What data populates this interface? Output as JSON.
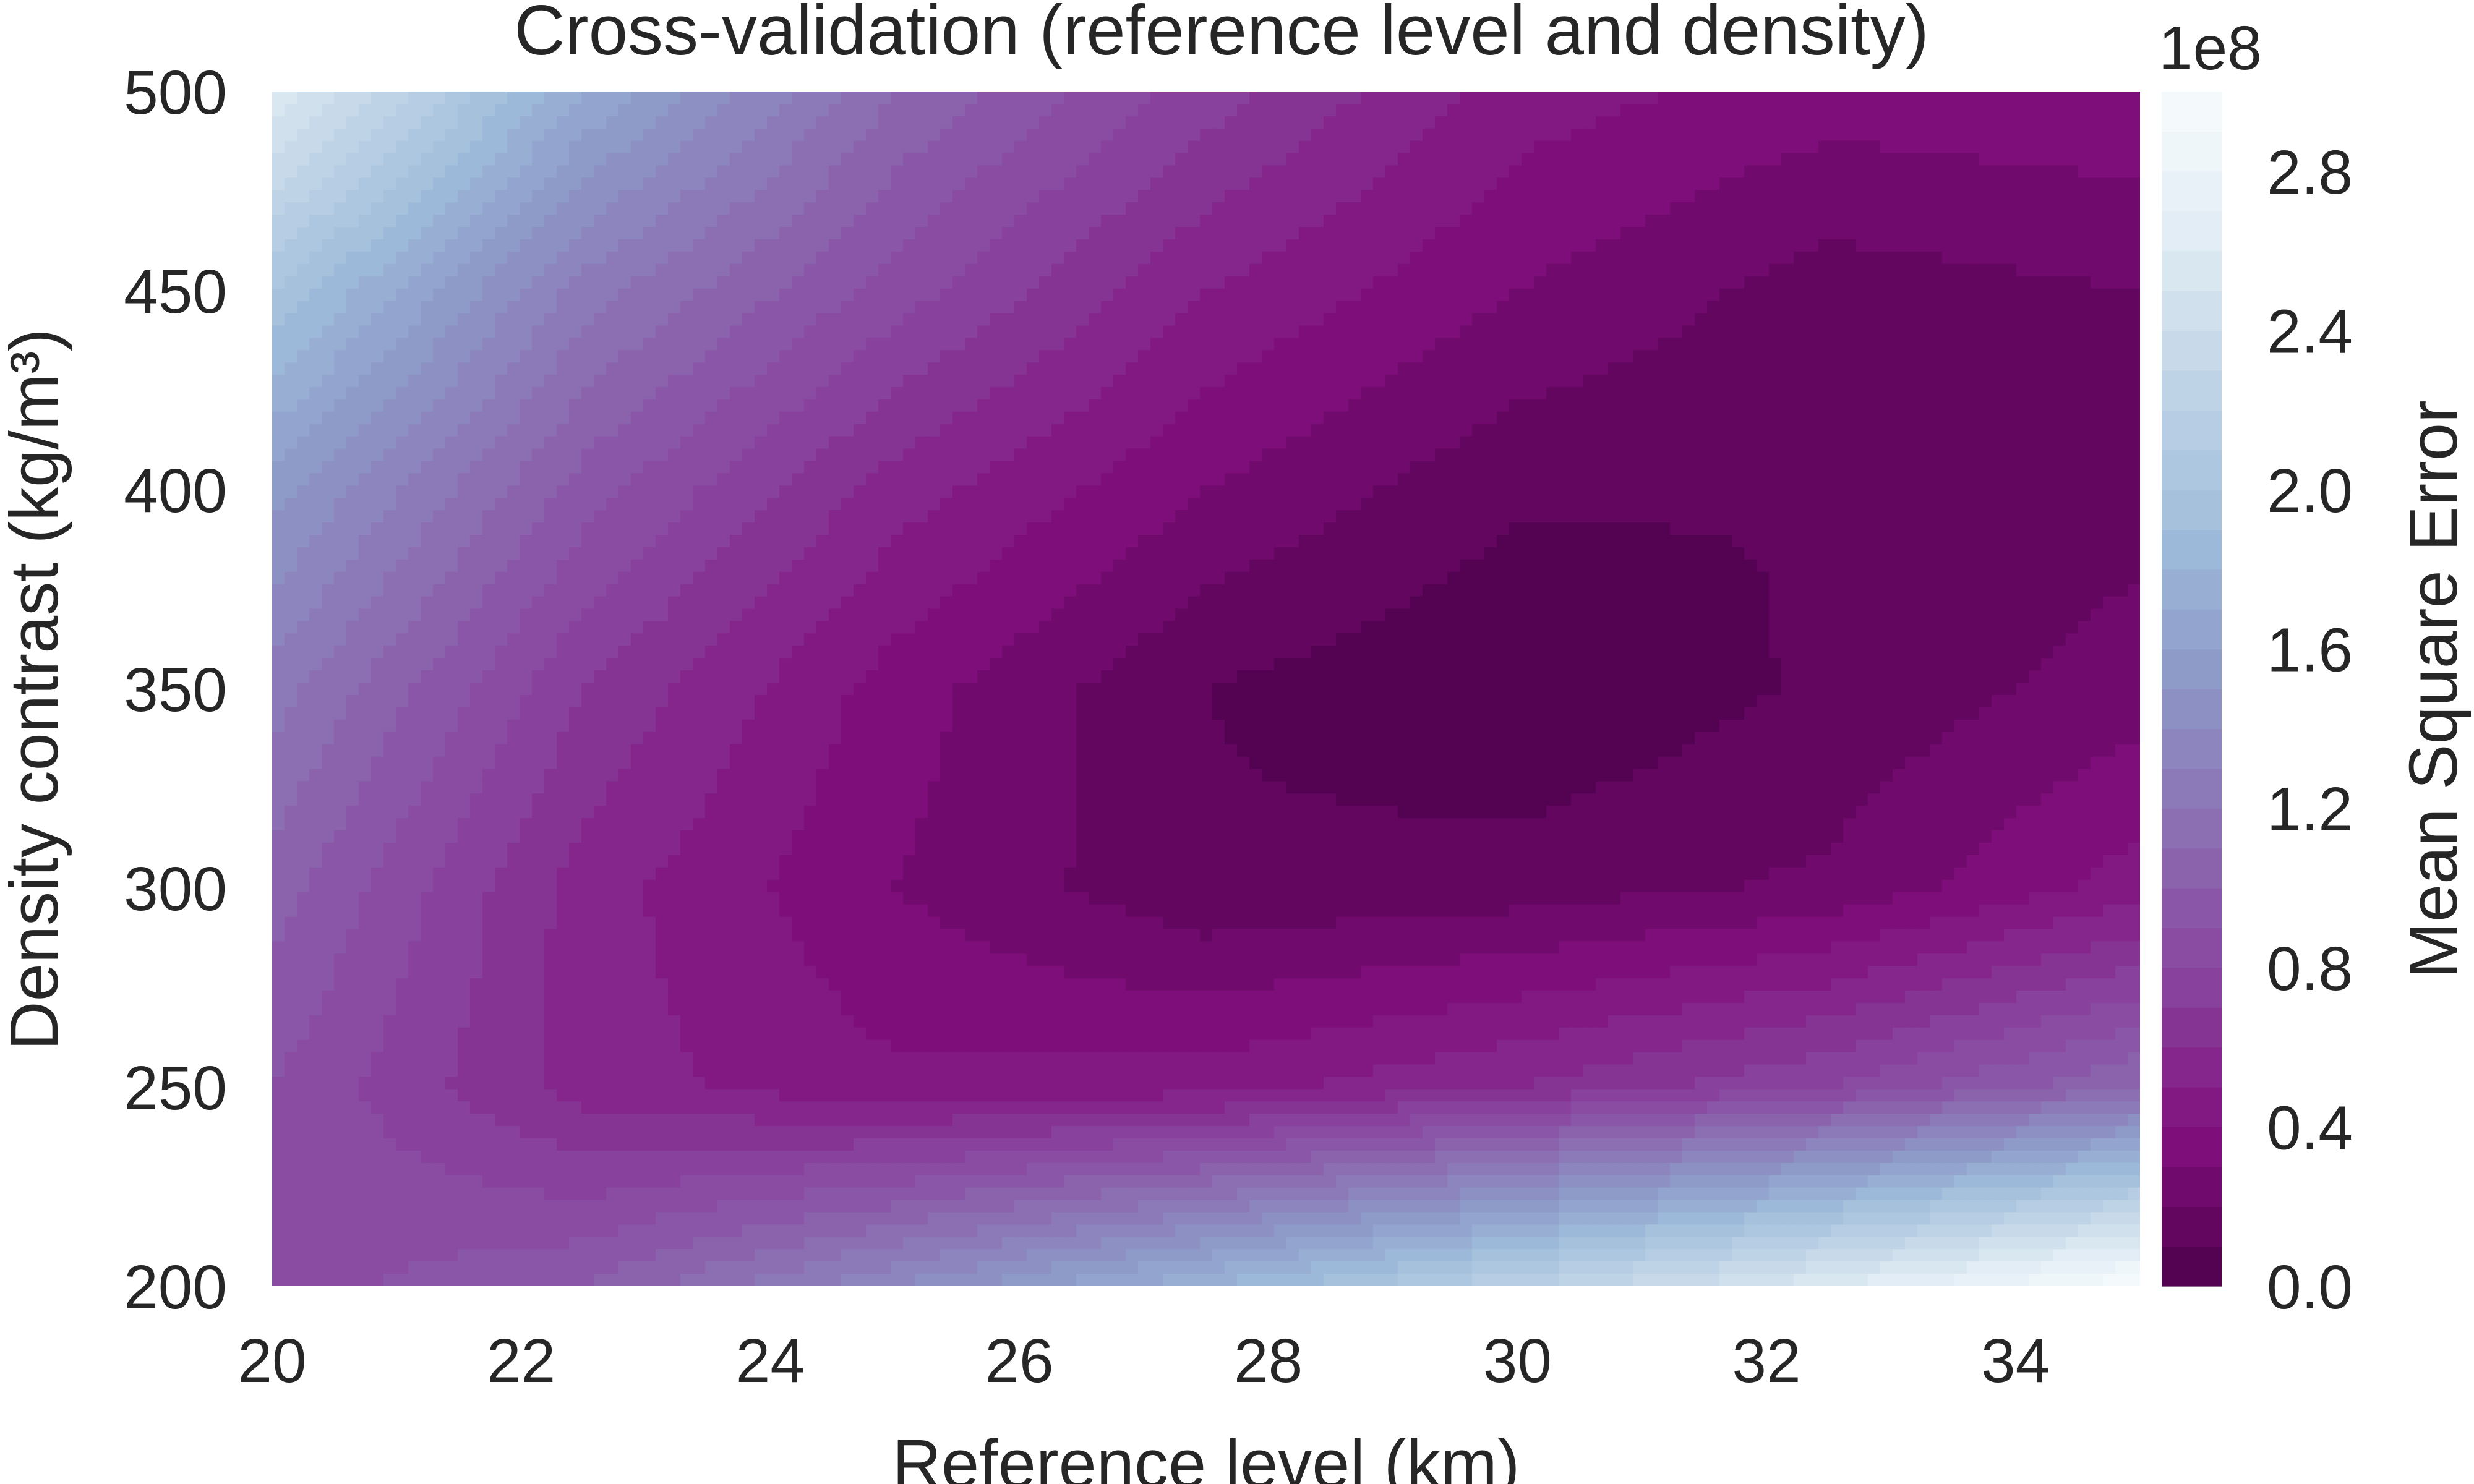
{
  "chart_data": {
    "type": "contourf",
    "title": "Cross-validation (reference level and density)",
    "xlabel": "Reference level (km)",
    "ylabel": "Density contrast (kg/m³)",
    "xlim": [
      20,
      35
    ],
    "ylim": [
      200,
      500
    ],
    "x_ticks": [
      20,
      22,
      24,
      26,
      28,
      30,
      32,
      34
    ],
    "y_ticks": [
      200,
      250,
      300,
      350,
      400,
      450,
      500
    ],
    "colorbar": {
      "label": "Mean Square Error",
      "offset_text": "1e8",
      "range": [
        0,
        3
      ],
      "ticks": [
        0.0,
        0.4,
        0.8,
        1.2,
        1.6,
        2.0,
        2.4,
        2.8
      ],
      "tick_labels": [
        "0.0",
        "0.4",
        "0.8",
        "1.2",
        "1.6",
        "2.0",
        "2.4",
        "2.8"
      ],
      "levels": 30,
      "colormap": "BuPu_r"
    },
    "grid": {
      "x": [
        20,
        22.5,
        25,
        27.5,
        30,
        32.5,
        35
      ],
      "y": [
        200,
        250,
        300,
        350,
        400,
        450,
        500
      ],
      "values": [
        [
          0.85,
          1.0,
          1.4,
          1.8,
          2.2,
          2.6,
          3.0
        ],
        [
          0.9,
          0.55,
          0.42,
          0.45,
          0.6,
          0.8,
          1.1
        ],
        [
          1.05,
          0.55,
          0.3,
          0.12,
          0.15,
          0.22,
          0.45
        ],
        [
          1.25,
          0.7,
          0.35,
          0.1,
          0.0,
          0.12,
          0.25
        ],
        [
          1.55,
          0.95,
          0.55,
          0.3,
          0.12,
          0.1,
          0.16
        ],
        [
          2.0,
          1.25,
          0.85,
          0.5,
          0.3,
          0.15,
          0.2
        ],
        [
          2.6,
          1.7,
          1.1,
          0.75,
          0.45,
          0.35,
          0.38
        ]
      ]
    }
  }
}
